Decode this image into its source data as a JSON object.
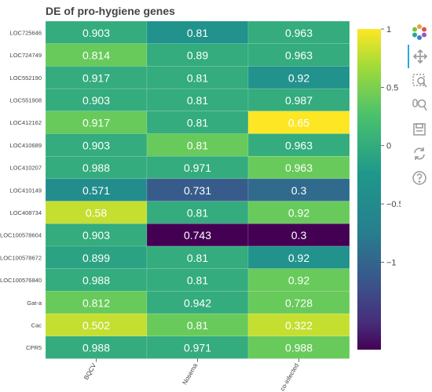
{
  "chart_data": {
    "type": "heatmap",
    "title": "DE of pro-hygiene genes",
    "xlabel": "",
    "ylabel": "",
    "columns": [
      "BQCV",
      "Nosema",
      "co-infected"
    ],
    "rows": [
      "LOC725646",
      "LOC724749",
      "LOC552190",
      "LOC551908",
      "LOC412162",
      "LOC410689",
      "LOC410207",
      "LOC410149",
      "LOC408734",
      "LOC100578604",
      "LOC100578672",
      "LOC100576840",
      "Gat-a",
      "Cac",
      "CPR5"
    ],
    "labels": [
      [
        "0.903",
        "0.81",
        "0.963"
      ],
      [
        "0.814",
        "0.89",
        "0.963"
      ],
      [
        "0.917",
        "0.81",
        "0.92"
      ],
      [
        "0.903",
        "0.81",
        "0.987"
      ],
      [
        "0.917",
        "0.81",
        "0.65"
      ],
      [
        "0.903",
        "0.81",
        "0.963"
      ],
      [
        "0.988",
        "0.971",
        "0.963"
      ],
      [
        "0.571",
        "0.731",
        "0.3"
      ],
      [
        "0.58",
        "0.81",
        "0.92"
      ],
      [
        "0.903",
        "0.743",
        "0.3"
      ],
      [
        "0.899",
        "0.81",
        "0.92"
      ],
      [
        "0.988",
        "0.81",
        "0.92"
      ],
      [
        "0.812",
        "0.942",
        "0.728"
      ],
      [
        "0.502",
        "0.81",
        "0.322"
      ],
      [
        "0.988",
        "0.971",
        "0.988"
      ]
    ],
    "color_values": [
      [
        0.0,
        -0.35,
        0.0
      ],
      [
        0.4,
        0.0,
        0.0
      ],
      [
        0.0,
        0.0,
        -0.35
      ],
      [
        0.0,
        0.0,
        0.0
      ],
      [
        0.4,
        0.0,
        1.0
      ],
      [
        0.0,
        0.4,
        0.0
      ],
      [
        0.0,
        0.0,
        0.4
      ],
      [
        -0.45,
        -1.1,
        -0.95
      ],
      [
        0.8,
        0.0,
        0.4
      ],
      [
        0.0,
        -1.75,
        -1.75
      ],
      [
        -0.1,
        0.0,
        -0.35
      ],
      [
        0.0,
        0.0,
        0.4
      ],
      [
        0.4,
        0.0,
        0.4
      ],
      [
        0.8,
        0.4,
        0.8
      ],
      [
        0.0,
        0.0,
        0.4
      ]
    ],
    "colorscale": "viridis",
    "colorbar": {
      "range": [
        -1.75,
        1.0
      ],
      "ticks": [
        1,
        0.5,
        0,
        -0.5,
        -1
      ],
      "tick_labels": [
        "1",
        "0.5",
        "0",
        "−0.5",
        "−1"
      ]
    },
    "grid": false,
    "legend": "right"
  },
  "toolbar": [
    {
      "name": "plotly-logo-icon",
      "icon": "logo"
    },
    {
      "name": "pan-icon",
      "icon": "pan"
    },
    {
      "name": "box-zoom-icon",
      "icon": "box-zoom"
    },
    {
      "name": "wheel-zoom-icon",
      "icon": "wheel-zoom"
    },
    {
      "name": "save-icon",
      "icon": "save"
    },
    {
      "name": "reset-icon",
      "icon": "reset"
    },
    {
      "name": "help-icon",
      "icon": "help"
    }
  ]
}
